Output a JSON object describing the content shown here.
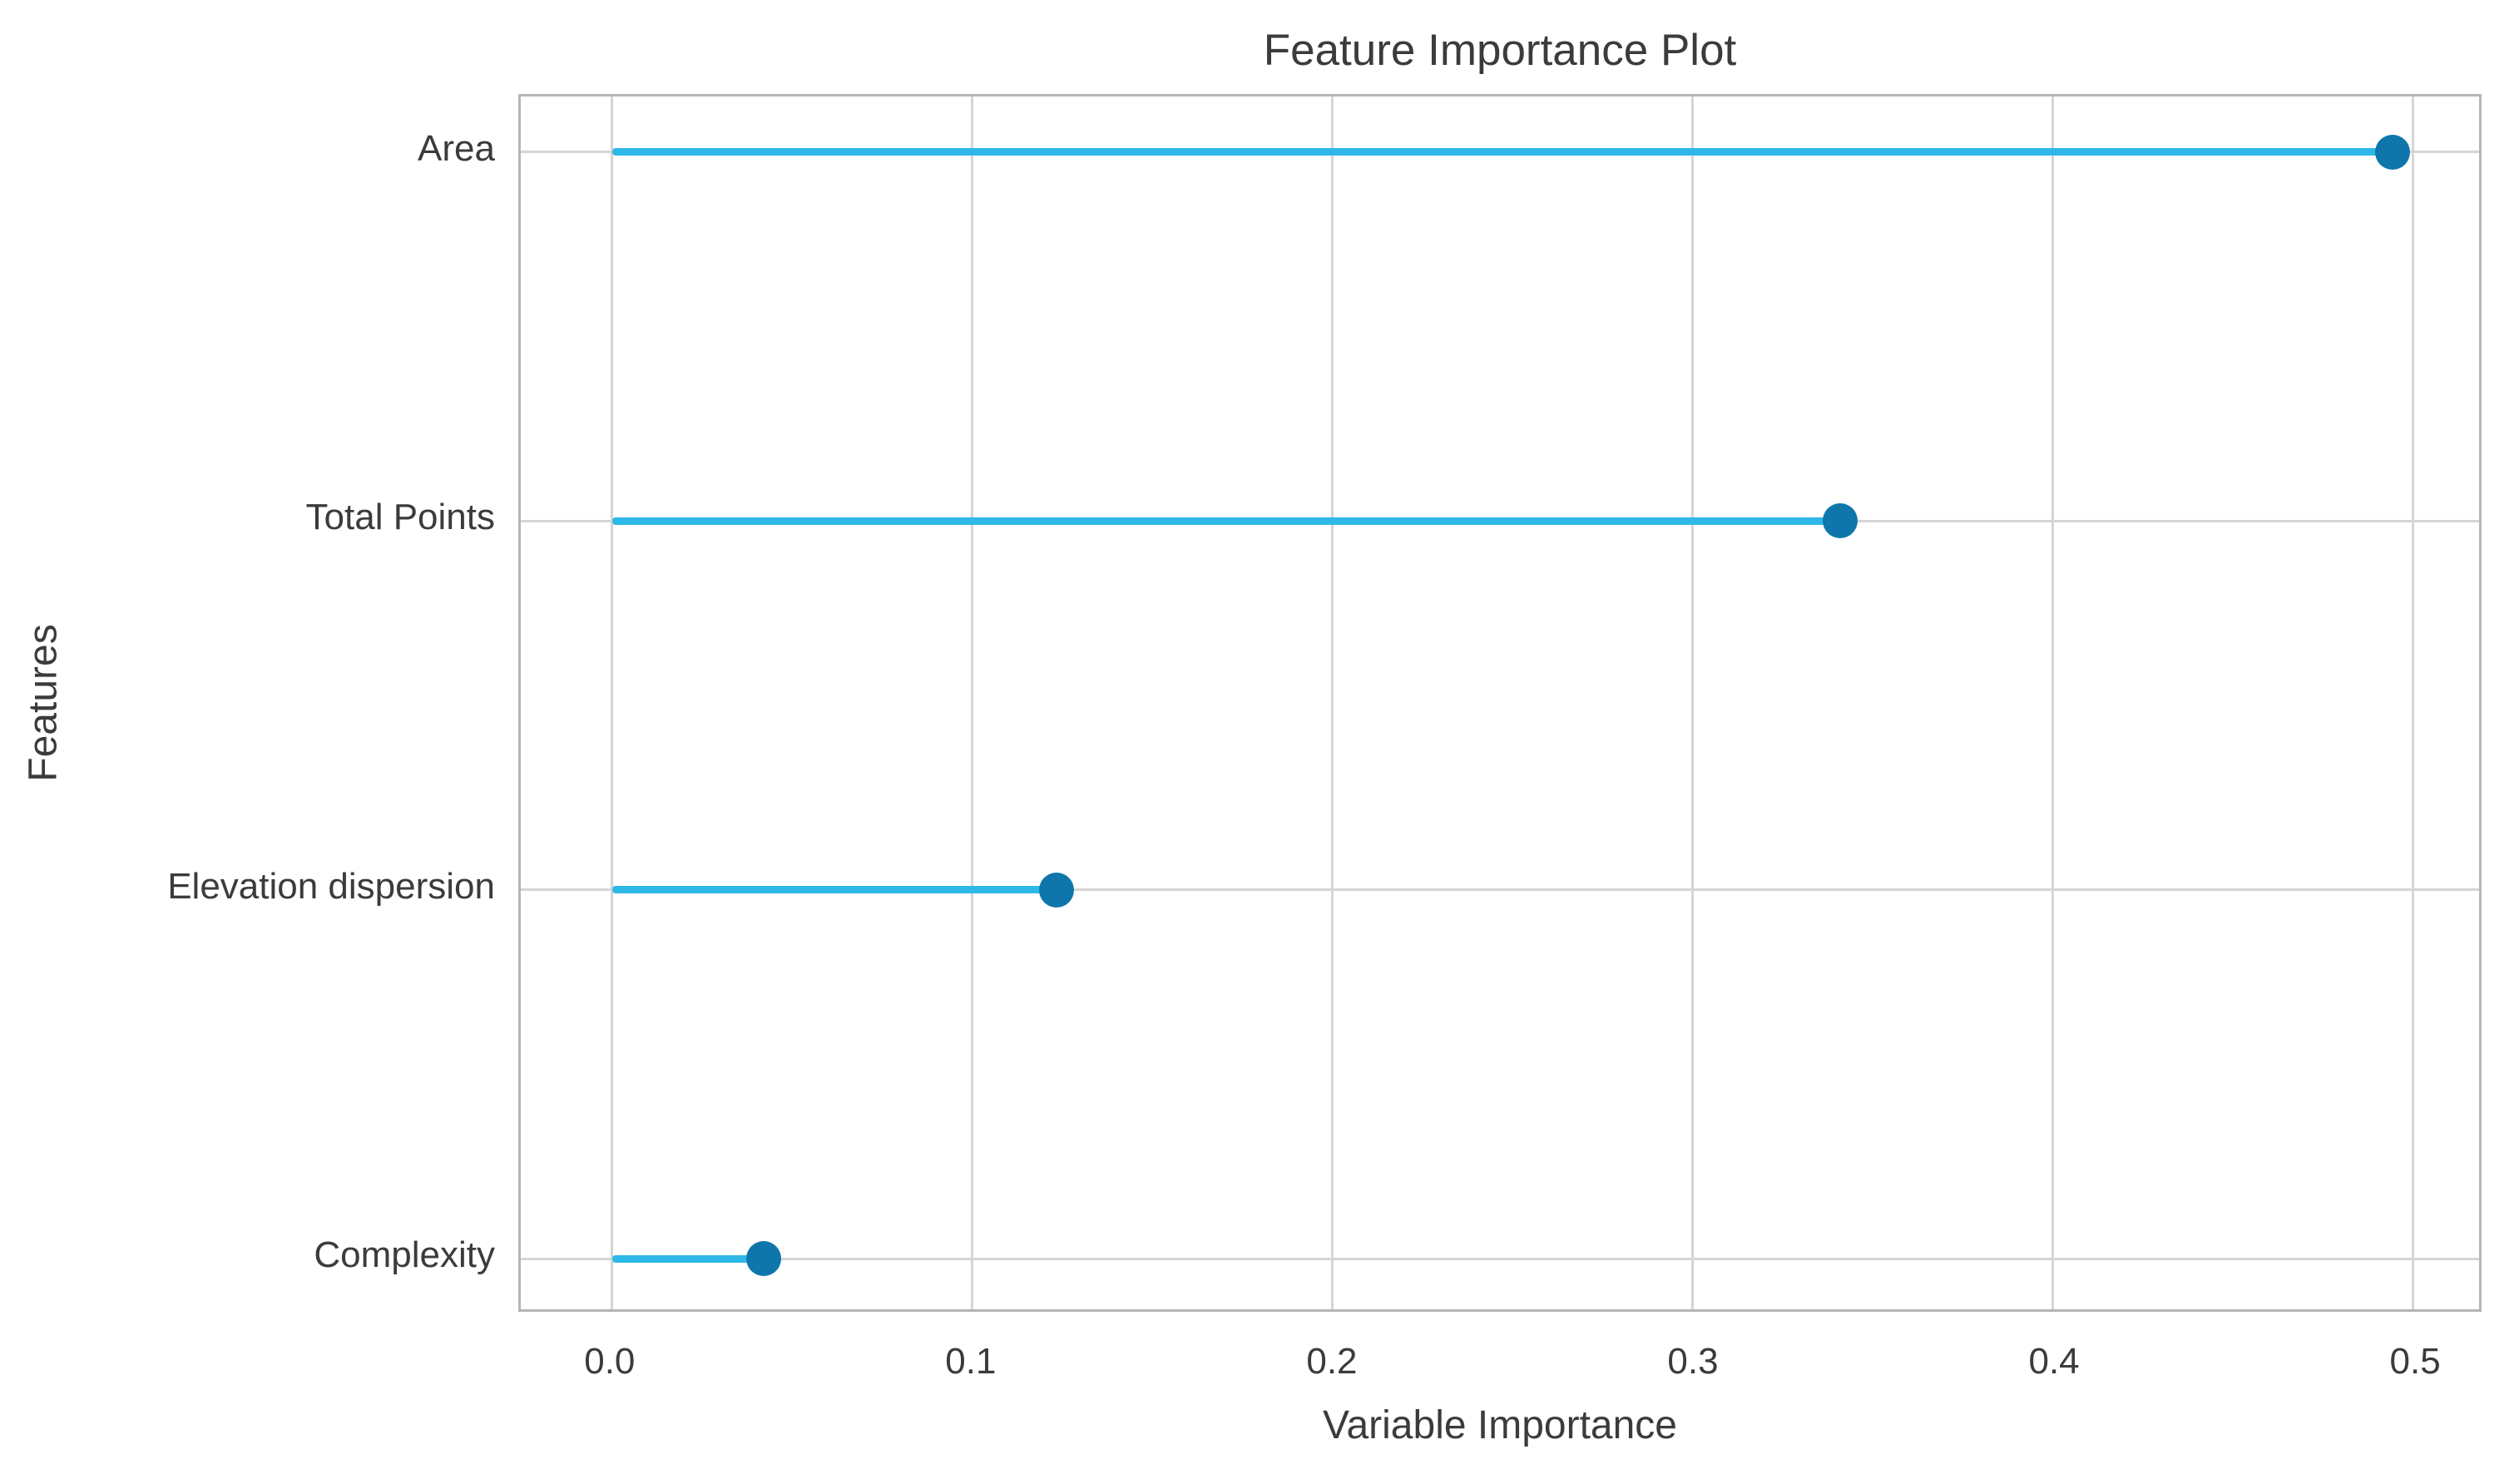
{
  "page": {
    "background": "#ffffff"
  },
  "chart_data": {
    "type": "scatter",
    "variant": "horizontal-lollipop",
    "title": "Feature Importance Plot",
    "xlabel": "Variable Importance",
    "ylabel": "Features",
    "categories": [
      "Area",
      "Total Points",
      "Elevation dispersion",
      "Complexity"
    ],
    "values": [
      0.493,
      0.34,
      0.123,
      0.042
    ],
    "stem_start": 0,
    "xticks": [
      0.0,
      0.1,
      0.2,
      0.3,
      0.4,
      0.5
    ],
    "xtick_labels": [
      "0.0",
      "0.1",
      "0.2",
      "0.3",
      "0.4",
      "0.5"
    ],
    "xlim": [
      -0.0253,
      0.5184
    ],
    "y_category_margin": 0.15,
    "grid": true,
    "legend_position": "none",
    "colors": {
      "stem": "#2eb8e8",
      "dot": "#0f76ab",
      "grid": "#d5d5d5",
      "plot_border": "#b6b6b6",
      "text": "#3b3b3b",
      "background": "#ffffff"
    }
  }
}
